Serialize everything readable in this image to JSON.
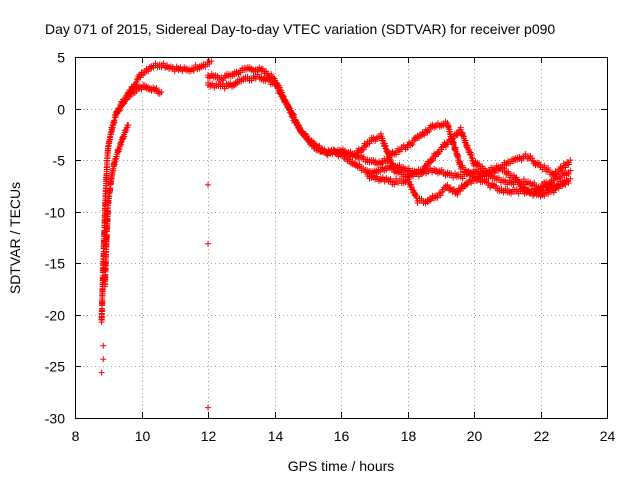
{
  "chart_data": {
    "type": "scatter",
    "title": "Day 071 of 2015, Sidereal Day-to-day VTEC variation (SDTVAR) for receiver p090",
    "xlabel": "GPS time / hours",
    "ylabel": "SDTVAR / TECUs",
    "xlim": [
      8,
      24
    ],
    "ylim": [
      -30,
      5
    ],
    "xticks": [
      8,
      10,
      12,
      14,
      16,
      18,
      20,
      22,
      24
    ],
    "yticks": [
      5,
      0,
      -5,
      -10,
      -15,
      -20,
      -25,
      -30
    ],
    "grid": true,
    "marker": "+",
    "color": "#ff0000",
    "outliers": [
      {
        "x": 12.0,
        "y": -7.4
      },
      {
        "x": 12.0,
        "y": -13.1
      },
      {
        "x": 12.0,
        "y": -29.0
      },
      {
        "x": 8.8,
        "y": -25.6
      },
      {
        "x": 8.85,
        "y": -24.3
      },
      {
        "x": 8.85,
        "y": -23.0
      }
    ],
    "series": [
      {
        "name": "track-a",
        "x": [
          8.8,
          8.85,
          8.9,
          8.95,
          9.0,
          9.1,
          9.2,
          9.4,
          9.6,
          9.8,
          10.0,
          10.3,
          10.6,
          11.0,
          11.4,
          11.8,
          12.1
        ],
        "y": [
          -20.5,
          -15.0,
          -10.0,
          -6.0,
          -3.5,
          -2.0,
          -0.8,
          0.5,
          1.5,
          2.5,
          3.5,
          4.2,
          4.4,
          4.0,
          3.8,
          4.3,
          4.6
        ]
      },
      {
        "name": "track-b",
        "x": [
          8.9,
          8.95,
          9.0,
          9.1,
          9.2,
          9.3,
          9.4,
          9.5,
          9.6
        ],
        "y": [
          -17.0,
          -12.5,
          -9.0,
          -6.5,
          -5.0,
          -4.0,
          -3.0,
          -2.2,
          -1.6
        ]
      },
      {
        "name": "track-c",
        "x": [
          9.2,
          9.4,
          9.6,
          9.8,
          10.0,
          10.2,
          10.4,
          10.6
        ],
        "y": [
          -0.5,
          0.6,
          1.3,
          1.8,
          2.1,
          2.2,
          1.9,
          1.6
        ]
      },
      {
        "name": "track-d",
        "x": [
          12.0,
          12.4,
          12.8,
          13.2,
          13.6,
          14.0,
          14.3,
          14.6,
          14.9,
          15.2,
          15.5,
          15.8,
          16.1,
          16.5,
          16.9,
          17.3,
          17.7,
          18.1,
          18.5,
          18.8,
          19.2,
          19.6,
          20.0,
          20.5,
          21.0,
          21.5,
          22.0,
          22.5,
          22.9
        ],
        "y": [
          3.3,
          3.0,
          3.5,
          4.0,
          3.8,
          3.0,
          1.0,
          -1.0,
          -2.5,
          -3.5,
          -4.0,
          -4.2,
          -4.5,
          -5.5,
          -6.0,
          -5.8,
          -5.5,
          -6.0,
          -6.0,
          -5.8,
          -6.2,
          -6.5,
          -6.0,
          -6.5,
          -7.0,
          -7.0,
          -7.5,
          -6.5,
          -6.0
        ]
      },
      {
        "name": "track-e",
        "x": [
          12.0,
          12.5,
          13.0,
          13.5,
          14.0,
          14.4,
          14.8,
          15.2,
          15.6,
          16.0,
          16.4,
          16.8,
          17.2,
          17.6,
          18.0,
          18.4,
          18.8,
          19.2,
          19.6,
          20.0,
          20.4,
          20.8,
          21.2,
          21.6,
          22.0,
          22.4,
          22.8
        ],
        "y": [
          2.5,
          2.2,
          2.8,
          3.2,
          2.6,
          0.3,
          -2.0,
          -3.6,
          -4.2,
          -4.0,
          -4.4,
          -5.0,
          -5.3,
          -4.2,
          -3.5,
          -2.5,
          -1.5,
          -1.4,
          -5.5,
          -6.5,
          -6.2,
          -5.8,
          -6.5,
          -8.0,
          -8.3,
          -7.8,
          -7.0
        ]
      },
      {
        "name": "track-f",
        "x": [
          16.0,
          16.4,
          16.8,
          17.2,
          17.6,
          18.0,
          18.4,
          18.8,
          19.2,
          19.6,
          20.0,
          20.4,
          20.8,
          21.2,
          21.6,
          22.0,
          22.4,
          22.9
        ],
        "y": [
          -4.0,
          -4.5,
          -3.2,
          -2.5,
          -5.8,
          -6.5,
          -6.2,
          -4.5,
          -3.2,
          -2.0,
          -5.2,
          -6.0,
          -5.5,
          -5.0,
          -4.5,
          -5.5,
          -6.2,
          -5.0
        ]
      },
      {
        "name": "track-g",
        "x": [
          16.8,
          17.2,
          17.6,
          18.0,
          18.3,
          18.6,
          18.9,
          19.2,
          19.5,
          19.8,
          20.2,
          20.6,
          21.0,
          21.4,
          21.8,
          22.2,
          22.6,
          22.9
        ],
        "y": [
          -6.5,
          -6.8,
          -7.0,
          -6.8,
          -8.8,
          -8.9,
          -8.3,
          -7.5,
          -8.0,
          -7.0,
          -6.8,
          -7.5,
          -8.0,
          -7.9,
          -8.0,
          -7.5,
          -7.2,
          -6.8
        ]
      }
    ]
  }
}
